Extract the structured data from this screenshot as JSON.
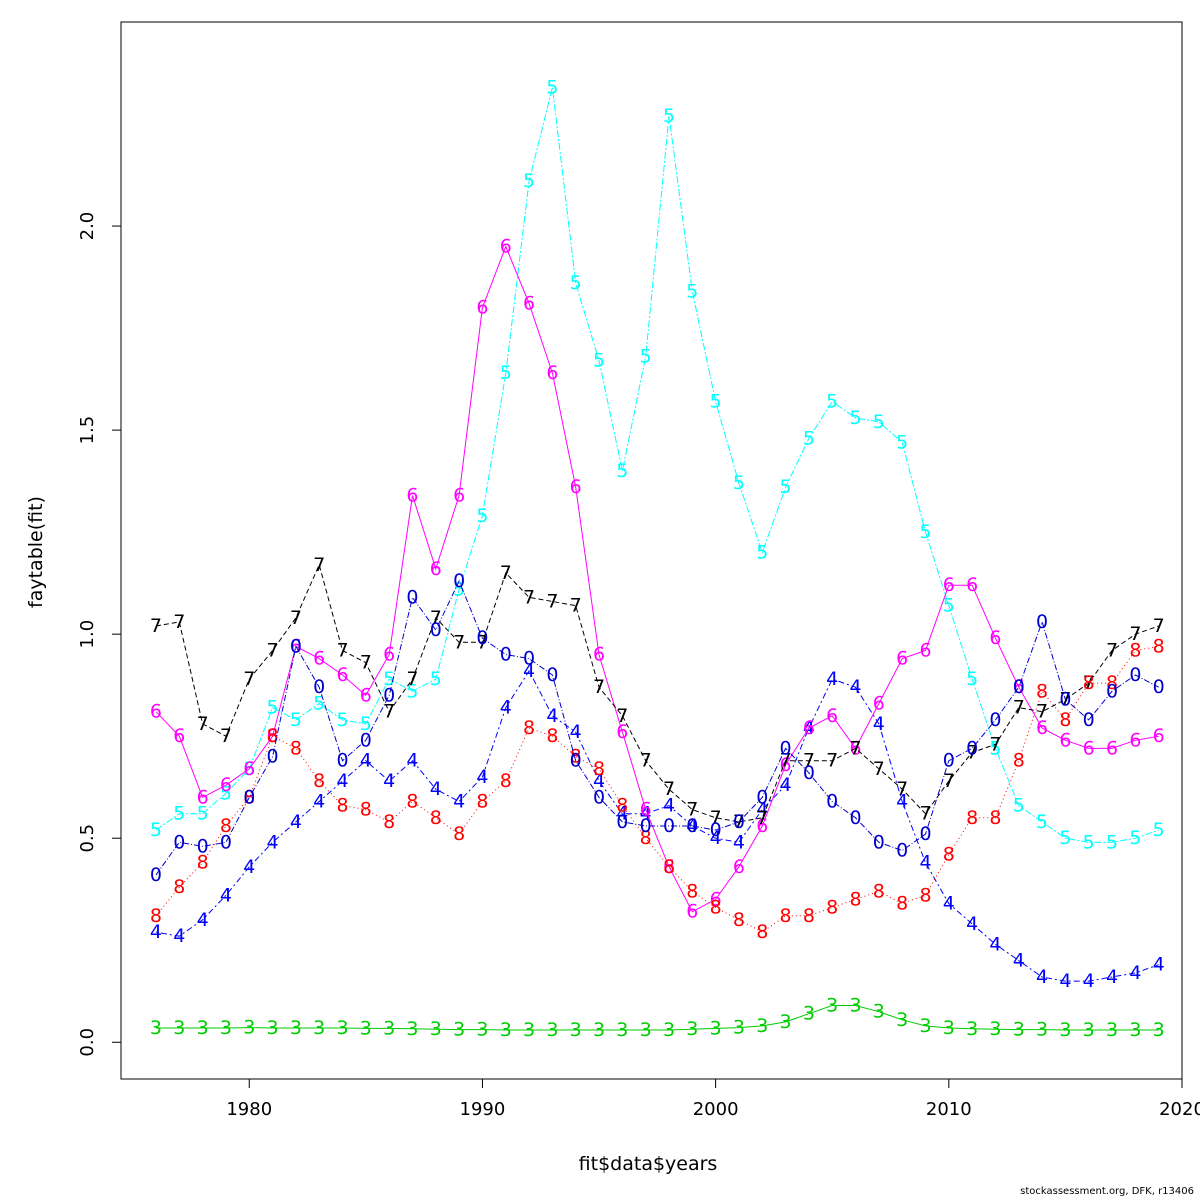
{
  "chart_data": {
    "type": "line",
    "title": "",
    "xlabel": "fit$data$years",
    "ylabel": "faytable(fit)",
    "xlim": [
      1974.5,
      2020
    ],
    "ylim": [
      -0.09,
      2.5
    ],
    "xticks": [
      1980,
      1990,
      2000,
      2010,
      2020
    ],
    "yticks": [
      0.0,
      0.5,
      1.0,
      1.5,
      2.0
    ],
    "grid": false,
    "legend": "none",
    "x": [
      1976,
      1977,
      1978,
      1979,
      1980,
      1981,
      1982,
      1983,
      1984,
      1985,
      1986,
      1987,
      1988,
      1989,
      1990,
      1991,
      1992,
      1993,
      1994,
      1995,
      1996,
      1997,
      1998,
      1999,
      2000,
      2001,
      2002,
      2003,
      2004,
      2005,
      2006,
      2007,
      2008,
      2009,
      2010,
      2011,
      2012,
      2013,
      2014,
      2015,
      2016,
      2017,
      2018,
      2019
    ],
    "series": [
      {
        "marker": "3",
        "color": "#00cd00",
        "dash": "",
        "values": [
          0.035,
          0.035,
          0.035,
          0.035,
          0.036,
          0.035,
          0.035,
          0.035,
          0.035,
          0.034,
          0.034,
          0.033,
          0.032,
          0.031,
          0.031,
          0.03,
          0.03,
          0.03,
          0.03,
          0.03,
          0.03,
          0.03,
          0.03,
          0.032,
          0.034,
          0.036,
          0.04,
          0.05,
          0.07,
          0.09,
          0.09,
          0.075,
          0.055,
          0.04,
          0.035,
          0.033,
          0.032,
          0.031,
          0.031,
          0.03,
          0.03,
          0.03,
          0.03,
          0.03
        ]
      },
      {
        "marker": "4",
        "color": "#0000ff",
        "dash": "2 3 6 3",
        "values": [
          0.27,
          0.26,
          0.3,
          0.36,
          0.43,
          0.49,
          0.54,
          0.59,
          0.64,
          0.69,
          0.64,
          0.69,
          0.62,
          0.59,
          0.65,
          0.82,
          0.91,
          0.8,
          0.76,
          0.64,
          0.56,
          0.56,
          0.58,
          0.53,
          0.5,
          0.49,
          0.57,
          0.63,
          0.77,
          0.89,
          0.87,
          0.78,
          0.59,
          0.44,
          0.34,
          0.29,
          0.24,
          0.2,
          0.16,
          0.15,
          0.15,
          0.16,
          0.17,
          0.19
        ]
      },
      {
        "marker": "5",
        "color": "#00ffff",
        "dash": "7 2 2 2",
        "values": [
          0.52,
          0.56,
          0.56,
          0.61,
          0.67,
          0.82,
          0.79,
          0.83,
          0.79,
          0.78,
          0.89,
          0.86,
          0.89,
          1.11,
          1.29,
          1.64,
          2.11,
          2.34,
          1.86,
          1.67,
          1.4,
          1.68,
          2.27,
          1.84,
          1.57,
          1.37,
          1.2,
          1.36,
          1.48,
          1.57,
          1.53,
          1.52,
          1.47,
          1.25,
          1.07,
          0.89,
          0.72,
          0.58,
          0.54,
          0.5,
          0.49,
          0.49,
          0.5,
          0.52
        ]
      },
      {
        "marker": "6",
        "color": "#ff00ff",
        "dash": "",
        "values": [
          0.81,
          0.75,
          0.6,
          0.63,
          0.67,
          0.75,
          0.97,
          0.94,
          0.9,
          0.85,
          0.95,
          1.34,
          1.16,
          1.34,
          1.8,
          1.95,
          1.81,
          1.64,
          1.36,
          0.95,
          0.76,
          0.57,
          0.43,
          0.32,
          0.35,
          0.43,
          0.53,
          0.68,
          0.77,
          0.8,
          0.72,
          0.83,
          0.94,
          0.96,
          1.12,
          1.12,
          0.99,
          0.87,
          0.77,
          0.74,
          0.72,
          0.72,
          0.74,
          0.75
        ]
      },
      {
        "marker": "7",
        "color": "#000000",
        "dash": "5 3",
        "values": [
          1.02,
          1.03,
          0.78,
          0.75,
          0.89,
          0.96,
          1.04,
          1.17,
          0.96,
          0.93,
          0.81,
          0.89,
          1.04,
          0.98,
          0.98,
          1.15,
          1.09,
          1.08,
          1.07,
          0.87,
          0.8,
          0.69,
          0.62,
          0.57,
          0.55,
          0.54,
          0.55,
          0.69,
          0.69,
          0.69,
          0.72,
          0.67,
          0.62,
          0.56,
          0.64,
          0.71,
          0.73,
          0.82,
          0.81,
          0.84,
          0.88,
          0.96,
          1.0,
          1.02
        ]
      },
      {
        "marker": "8",
        "color": "#ff0000",
        "dash": "1 3",
        "values": [
          0.31,
          0.38,
          0.44,
          0.53,
          0.6,
          0.75,
          0.72,
          0.64,
          0.58,
          0.57,
          0.54,
          0.59,
          0.55,
          0.51,
          0.59,
          0.64,
          0.77,
          0.75,
          0.7,
          0.67,
          0.58,
          0.5,
          0.43,
          0.37,
          0.33,
          0.3,
          0.27,
          0.31,
          0.31,
          0.33,
          0.35,
          0.37,
          0.34,
          0.36,
          0.46,
          0.55,
          0.55,
          0.69,
          0.86,
          0.79,
          0.88,
          0.88,
          0.96,
          0.97
        ]
      },
      {
        "marker": "0",
        "color": "#0000cd",
        "dash": "6 2 1 2",
        "values": [
          0.41,
          0.49,
          0.48,
          0.49,
          0.6,
          0.7,
          0.97,
          0.87,
          0.69,
          0.74,
          0.85,
          1.09,
          1.01,
          1.13,
          0.99,
          0.95,
          0.94,
          0.9,
          0.69,
          0.6,
          0.54,
          0.53,
          0.53,
          0.53,
          0.52,
          0.54,
          0.6,
          0.72,
          0.66,
          0.59,
          0.55,
          0.49,
          0.47,
          0.51,
          0.69,
          0.72,
          0.79,
          0.87,
          1.03,
          0.84,
          0.79,
          0.86,
          0.9,
          0.87
        ]
      }
    ]
  },
  "footer": {
    "credit": "stockassessment.org, DFK, r13406"
  }
}
